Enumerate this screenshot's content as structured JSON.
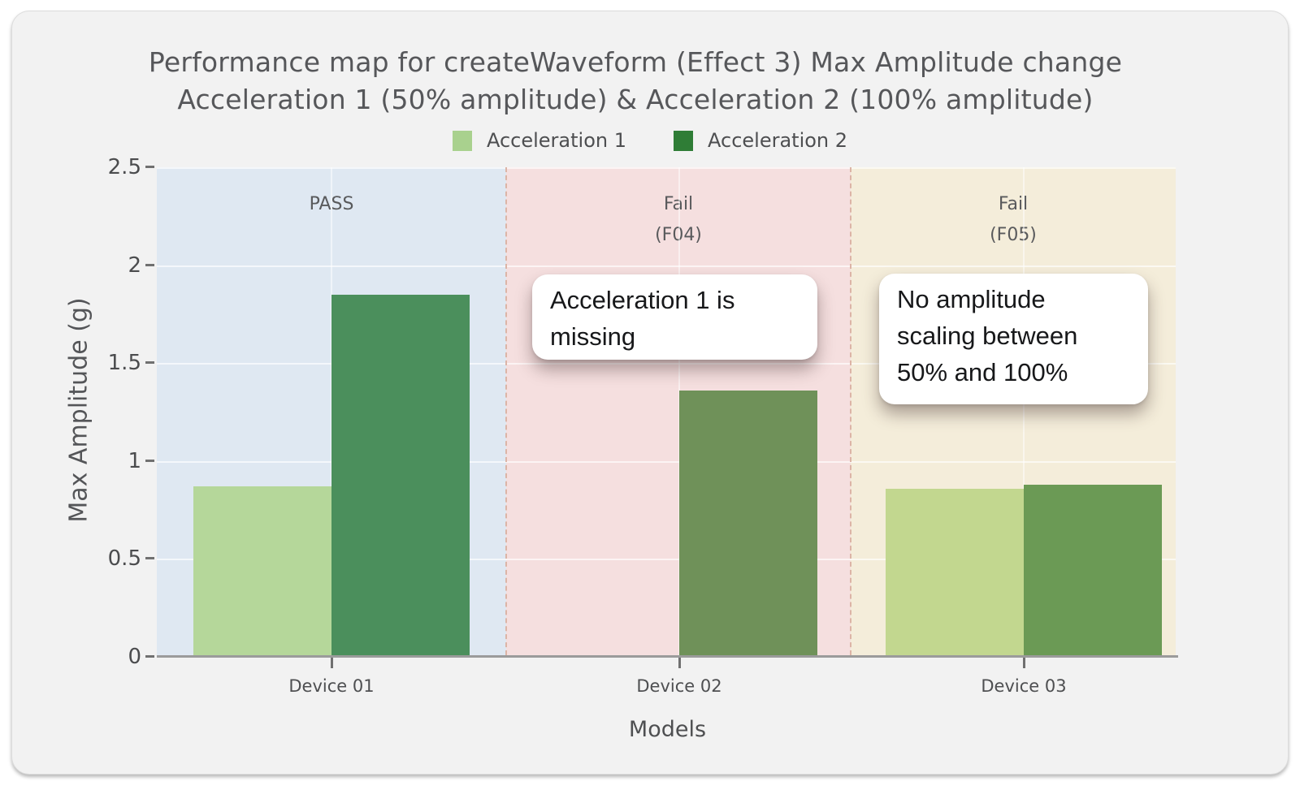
{
  "header": {
    "title_line1": "Performance map for createWaveform (Effect 3) Max Amplitude change",
    "title_line2": "Acceleration 1 (50% amplitude) & Acceleration 2 (100% amplitude)"
  },
  "colors": {
    "page_bg": "#ffffff",
    "card_bg": "#f2f2f2",
    "title_text": "#56575a",
    "axis_line": "#9b9b9b",
    "tick_mark": "#707070",
    "gridline": "rgba(255,255,255,0.65)",
    "zone_separator": "#dcb4a6",
    "annotation_bg": "#ffffff",
    "annotation_text": "#17181a",
    "legend_acceleration_1": "#a9d18e",
    "legend_acceleration_2": "#2f7d36"
  },
  "chart_data": {
    "type": "bar",
    "title": "Performance map for createWaveform (Effect 3) Max Amplitude change Acceleration 1 (50% amplitude) & Acceleration 2 (100% amplitude)",
    "categories": [
      "Device 01",
      "Device 02",
      "Device 03"
    ],
    "series": [
      {
        "name": "Acceleration 1",
        "values": [
          0.87,
          null,
          0.86
        ],
        "legend_color": "#a9d18e",
        "bar_fills": [
          "#b5d79a",
          null,
          "#c2d78f"
        ]
      },
      {
        "name": "Acceleration 2",
        "values": [
          1.85,
          1.36,
          0.88
        ],
        "legend_color": "#2f7d36",
        "bar_fills": [
          "#4b8f5c",
          "#6f9159",
          "#6b9a55"
        ]
      }
    ],
    "xlabel": "Models",
    "ylabel": "Max Amplitude (g)",
    "ylim": [
      0,
      2.5
    ],
    "yticks": [
      {
        "value": 0,
        "label": "0"
      },
      {
        "value": 0.5,
        "label": "0.5"
      },
      {
        "value": 1,
        "label": "1"
      },
      {
        "value": 1.5,
        "label": "1.5"
      },
      {
        "value": 2,
        "label": "2"
      },
      {
        "value": 2.5,
        "label": "2.5"
      }
    ],
    "grid": true,
    "legend_position": "top",
    "zones": [
      {
        "label": "PASS",
        "sublabel": "",
        "result": "pass",
        "bg": "#dfe8f2",
        "category": "Device 01"
      },
      {
        "label": "Fail",
        "sublabel": "(F04)",
        "result": "fail",
        "bg": "#f5dfdf",
        "category": "Device 02"
      },
      {
        "label": "Fail",
        "sublabel": "(F05)",
        "result": "fail",
        "bg": "#f4edda",
        "category": "Device 03"
      }
    ],
    "annotations": [
      {
        "text": "Acceleration 1 is missing",
        "lines": [
          "Acceleration 1 is",
          "missing"
        ],
        "zone": "Fail (F04)"
      },
      {
        "text": "No amplitude scaling between 50% and 100%",
        "lines": [
          "No amplitude",
          "scaling between",
          "50% and 100%"
        ],
        "zone": "Fail (F05)"
      }
    ]
  }
}
